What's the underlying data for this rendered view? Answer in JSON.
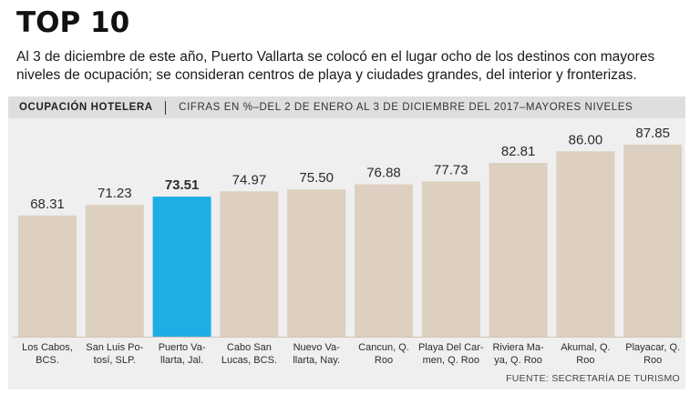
{
  "title": "TOP 10",
  "subtitle": "Al 3 de diciembre de este año, Puerto Vallarta se colocó en el lugar ocho de los destinos con mayores niveles de ocupación; se consideran centros de playa y ciudades grandes, del interior y fronterizas.",
  "header": {
    "label": "OCUPACIÓN HOTELERA",
    "subtitle": "CIFRAS EN %–DEL 2 DE ENERO AL 3 DE DICIEMBRE DEL 2017–MAYORES NIVELES"
  },
  "source": "FUENTE: SECRETARÍA DE TURISMO",
  "colors": {
    "bar": "#ddd0c1",
    "highlight": "#1eaee6",
    "background": "#efefef"
  },
  "chart_data": {
    "type": "bar",
    "title": "OCUPACIÓN HOTELERA",
    "subtitle": "CIFRAS EN %–DEL 2 DE ENERO AL 3 DE DICIEMBRE DEL 2017–MAYORES NIVELES",
    "xlabel": "",
    "ylabel": "",
    "categories": [
      [
        "Los Cabos,",
        "BCS."
      ],
      [
        "San Luis Po-",
        "tosí, SLP."
      ],
      [
        "Puerto Va-",
        "llarta, Jal."
      ],
      [
        "Cabo San",
        "Lucas, BCS."
      ],
      [
        "Nuevo Va-",
        "llarta, Nay."
      ],
      [
        "Cancun, Q.",
        "Roo"
      ],
      [
        "Playa Del Car-",
        "men, Q. Roo"
      ],
      [
        "Riviera Ma-",
        "ya, Q. Roo"
      ],
      [
        "Akumal, Q.",
        "Roo"
      ],
      [
        "Playacar, Q.",
        "Roo"
      ]
    ],
    "values": [
      68.31,
      71.23,
      73.51,
      74.97,
      75.5,
      76.88,
      77.73,
      82.81,
      86.0,
      87.85
    ],
    "value_labels": [
      "68.31",
      "71.23",
      "73.51",
      "74.97",
      "75.50",
      "76.88",
      "77.73",
      "82.81",
      "86.00",
      "87.85"
    ],
    "highlight_index": 2,
    "ylim": [
      0,
      100
    ],
    "grid": false,
    "legend": "none"
  }
}
